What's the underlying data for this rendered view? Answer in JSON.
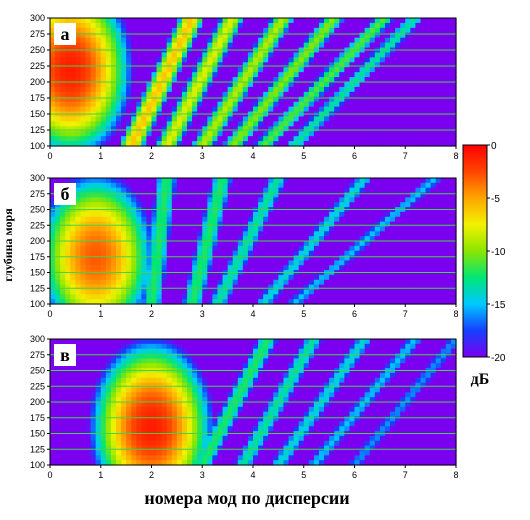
{
  "chart_data": {
    "type": "heatmap",
    "xlabel": "номера мод по дисперсии",
    "ylabel": "глубина моря",
    "xlim": [
      0,
      8
    ],
    "ylim": [
      100,
      300
    ],
    "xticks": [
      "0",
      "1",
      "2",
      "3",
      "4",
      "5",
      "6",
      "7",
      "8"
    ],
    "yticks": [
      "100",
      "125",
      "150",
      "175",
      "200",
      "225",
      "250",
      "275",
      "300"
    ],
    "grid": "horizontal",
    "colorbar": {
      "unit": "дБ",
      "range": [
        -20,
        0
      ],
      "ticks": [
        "0",
        "-5",
        "-10",
        "-15",
        "-20"
      ],
      "colors": [
        "#7b00f0",
        "#1540ff",
        "#00c8ff",
        "#00e676",
        "#8ce600",
        "#f2f200",
        "#ffa500",
        "#ff4500",
        "#ff0000"
      ]
    },
    "panels": [
      {
        "label": "а",
        "peak": {
          "x": 0.4,
          "y": 220,
          "level_db": -1
        },
        "bands": [
          {
            "x_at_300": 2.8,
            "x_at_100": 1.6,
            "level_db": -6
          },
          {
            "x_at_300": 3.6,
            "x_at_100": 2.3,
            "level_db": -8
          },
          {
            "x_at_300": 4.6,
            "x_at_100": 3.0,
            "level_db": -9
          },
          {
            "x_at_300": 5.6,
            "x_at_100": 3.6,
            "level_db": -10
          },
          {
            "x_at_300": 6.6,
            "x_at_100": 4.2,
            "level_db": -11
          },
          {
            "x_at_300": 7.2,
            "x_at_100": 4.8,
            "level_db": -13
          }
        ]
      },
      {
        "label": "б",
        "peak": {
          "x": 0.9,
          "y": 175,
          "level_db": -3
        },
        "bands": [
          {
            "x_at_300": 2.3,
            "x_at_100": 2.0,
            "level_db": -12
          },
          {
            "x_at_300": 3.4,
            "x_at_100": 2.8,
            "level_db": -12
          },
          {
            "x_at_300": 4.5,
            "x_at_100": 3.3,
            "level_db": -13
          },
          {
            "x_at_300": 6.2,
            "x_at_100": 4.2,
            "level_db": -14
          },
          {
            "x_at_300": 7.6,
            "x_at_100": 4.8,
            "level_db": -15
          }
        ]
      },
      {
        "label": "в",
        "peak": {
          "x": 2.0,
          "y": 160,
          "level_db": -1
        },
        "bands": [
          {
            "x_at_300": 4.3,
            "x_at_100": 3.0,
            "level_db": -12
          },
          {
            "x_at_300": 5.2,
            "x_at_100": 3.8,
            "level_db": -13
          },
          {
            "x_at_300": 6.2,
            "x_at_100": 4.5,
            "level_db": -14
          },
          {
            "x_at_300": 7.2,
            "x_at_100": 5.2,
            "level_db": -15
          },
          {
            "x_at_300": 8.0,
            "x_at_100": 6.0,
            "level_db": -16
          }
        ]
      }
    ]
  }
}
